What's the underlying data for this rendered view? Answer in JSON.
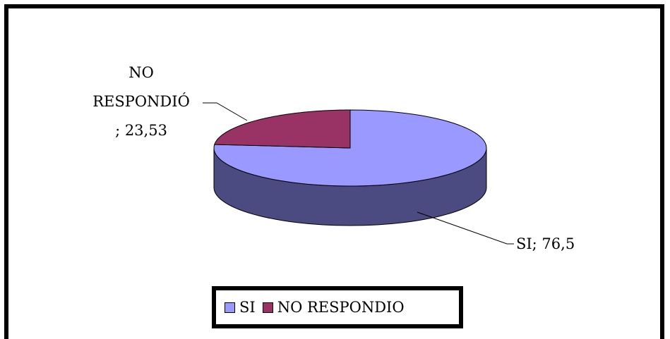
{
  "chart_data": {
    "type": "pie",
    "style": "3d",
    "slices": [
      {
        "name": "SI",
        "value": 76.5,
        "color": "#9999ff",
        "side_color": "#4b4b82",
        "data_label": "SI; 76,5"
      },
      {
        "name": "NO RESPONDIO",
        "value": 23.53,
        "color": "#993366",
        "side_color": "#5e1f3e",
        "data_label_lines": [
          "NO",
          "RESPONDIÓ",
          "; 23,53"
        ]
      }
    ],
    "legend": {
      "position": "bottom",
      "entries": [
        "SI",
        "NO RESPONDIO"
      ]
    }
  }
}
